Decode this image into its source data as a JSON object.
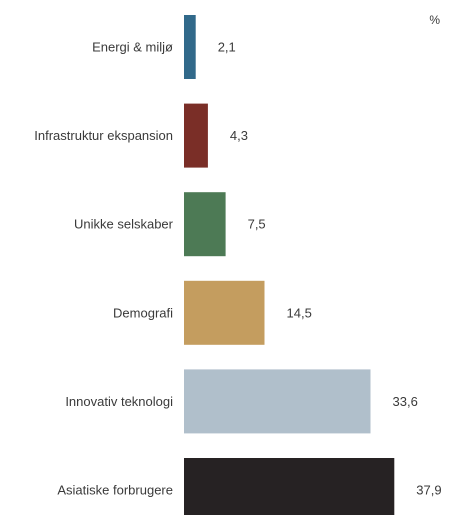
{
  "chart_data": {
    "type": "bar",
    "orientation": "horizontal",
    "unit": "%",
    "categories": [
      "Energi & miljø",
      "Infrastruktur ekspansion",
      "Unikke selskaber",
      "Demografi",
      "Innovativ teknologi",
      "Asiatiske forbrugere"
    ],
    "values": [
      2.1,
      4.3,
      7.5,
      14.5,
      33.6,
      37.9
    ],
    "value_labels": [
      "2,1",
      "4,3",
      "7,5",
      "14,5",
      "33,6",
      "37,9"
    ],
    "colors": [
      "#31698a",
      "#7a2e27",
      "#4d7a55",
      "#c49d5f",
      "#b0bfcb",
      "#262223"
    ],
    "xlim": [
      0,
      40
    ],
    "grid": false,
    "legend": "none"
  }
}
